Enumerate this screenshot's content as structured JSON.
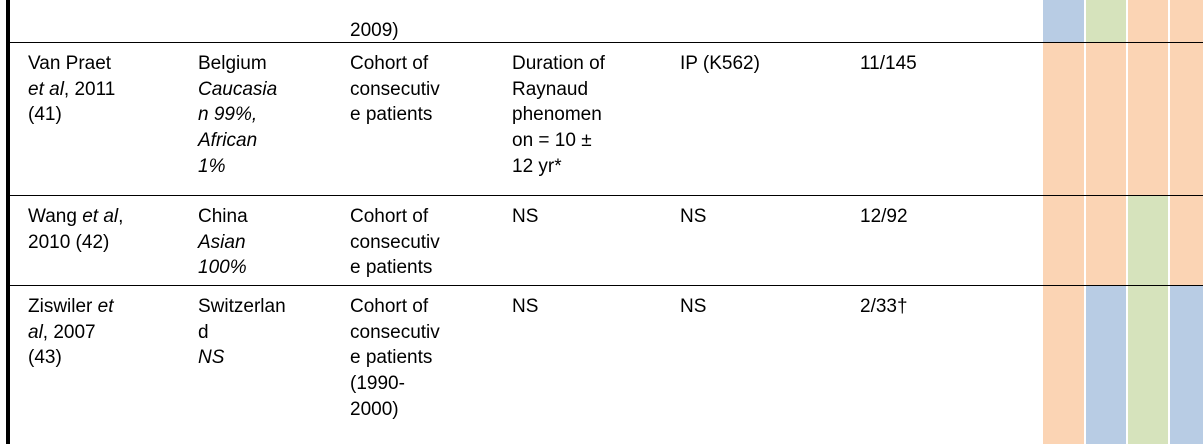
{
  "table": {
    "rows": [
      {
        "cells": [
          [],
          [],
          [
            [
              "2009)"
            ]
          ],
          [],
          [],
          []
        ],
        "colors": [
          "#b8cce4",
          "#d6e3bc",
          "#fbd4b4",
          "#fbd4b4"
        ]
      },
      {
        "cells": [
          [
            [
              "Van Praet"
            ],
            [
              {
                "text": "et al",
                "italic": true
              },
              ", 2011"
            ],
            [
              "(41)"
            ]
          ],
          [
            [
              "Belgium"
            ],
            [
              {
                "text": "Caucasia",
                "italic": true
              }
            ],
            [
              {
                "text": "n 99%,",
                "italic": true
              }
            ],
            [
              {
                "text": "African",
                "italic": true
              }
            ],
            [
              {
                "text": "1%",
                "italic": true
              }
            ]
          ],
          [
            [
              "Cohort of"
            ],
            [
              "consecutiv"
            ],
            [
              "e patients"
            ]
          ],
          [
            [
              "Duration of"
            ],
            [
              "Raynaud"
            ],
            [
              "phenomen"
            ],
            [
              "on = 10 ±"
            ],
            [
              "12 yr*"
            ]
          ],
          [
            [
              "IP (K562)"
            ]
          ],
          [
            [
              "11/145"
            ]
          ]
        ],
        "colors": [
          "#fbd4b4",
          "#fbd4b4",
          "#fbd4b4",
          "#fbd4b4"
        ]
      },
      {
        "cells": [
          [
            [
              "Wang ",
              {
                "text": "et al",
                "italic": true
              },
              ","
            ],
            [
              "2010 (42)"
            ]
          ],
          [
            [
              "China"
            ],
            [
              {
                "text": "Asian",
                "italic": true
              }
            ],
            [
              {
                "text": "100%",
                "italic": true
              }
            ]
          ],
          [
            [
              "Cohort of"
            ],
            [
              "consecutiv"
            ],
            [
              "e patients"
            ]
          ],
          [
            [
              "NS"
            ]
          ],
          [
            [
              "NS"
            ]
          ],
          [
            [
              "12/92"
            ]
          ]
        ],
        "colors": [
          "#fbd4b4",
          "#fbd4b4",
          "#d6e3bc",
          "#fbd4b4"
        ]
      },
      {
        "cells": [
          [
            [
              "Ziswiler ",
              {
                "text": "et",
                "italic": true
              }
            ],
            [
              {
                "text": "al",
                "italic": true
              },
              ", 2007"
            ],
            [
              "(43)"
            ]
          ],
          [
            [
              "Switzerlan"
            ],
            [
              "d"
            ],
            [
              {
                "text": "NS",
                "italic": true
              }
            ]
          ],
          [
            [
              "Cohort of"
            ],
            [
              "consecutiv"
            ],
            [
              "e patients"
            ],
            [
              "(1990-"
            ],
            [
              "2000)"
            ]
          ],
          [
            [
              "NS"
            ]
          ],
          [
            [
              "NS"
            ]
          ],
          [
            [
              "2/33†"
            ]
          ]
        ],
        "colors": [
          "#fbd4b4",
          "#b8cce4",
          "#d6e3bc",
          "#b8cce4"
        ]
      }
    ]
  }
}
